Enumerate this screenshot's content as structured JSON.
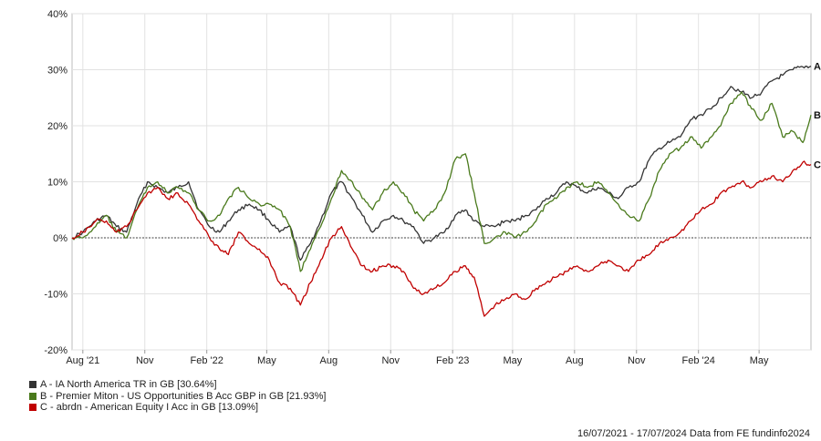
{
  "chart_data": {
    "type": "line",
    "y_axis": {
      "ticks": [
        "40%",
        "30%",
        "20%",
        "10%",
        "0%",
        "-10%",
        "-20%"
      ],
      "values": [
        40,
        30,
        20,
        10,
        0,
        -10,
        -20
      ],
      "ylim": [
        -20,
        40
      ]
    },
    "x_axis": {
      "ticks": [
        "Aug '21",
        "Nov",
        "Feb '22",
        "May",
        "Aug",
        "Nov",
        "Feb '23",
        "May",
        "Aug",
        "Nov",
        "Feb '24",
        "May"
      ],
      "tick_dates": [
        "2021-08-01",
        "2021-11-01",
        "2022-02-01",
        "2022-05-01",
        "2022-08-01",
        "2022-11-01",
        "2023-02-01",
        "2023-05-01",
        "2023-08-01",
        "2023-11-01",
        "2024-02-01",
        "2024-05-01"
      ],
      "xlim": [
        "2021-07-16",
        "2024-07-17"
      ]
    },
    "grid": true,
    "legend_position": "bottom-left",
    "series": [
      {
        "name": "A - IA North America TR in GB [30.64%]",
        "end_label": "A",
        "color": "#333333",
        "points": [
          [
            "2021-07-16",
            0
          ],
          [
            "2021-08-01",
            1
          ],
          [
            "2021-08-20",
            3
          ],
          [
            "2021-09-05",
            4
          ],
          [
            "2021-09-20",
            2
          ],
          [
            "2021-10-05",
            1
          ],
          [
            "2021-10-20",
            6
          ],
          [
            "2021-11-05",
            10
          ],
          [
            "2021-11-20",
            9
          ],
          [
            "2021-12-05",
            8
          ],
          [
            "2021-12-20",
            9
          ],
          [
            "2022-01-05",
            10
          ],
          [
            "2022-01-20",
            5
          ],
          [
            "2022-02-05",
            2
          ],
          [
            "2022-02-20",
            1
          ],
          [
            "2022-03-05",
            3
          ],
          [
            "2022-03-20",
            5
          ],
          [
            "2022-04-05",
            6
          ],
          [
            "2022-04-20",
            5
          ],
          [
            "2022-05-05",
            3
          ],
          [
            "2022-05-20",
            1
          ],
          [
            "2022-06-05",
            2
          ],
          [
            "2022-06-20",
            -4
          ],
          [
            "2022-07-05",
            -1
          ],
          [
            "2022-07-20",
            3
          ],
          [
            "2022-08-05",
            8
          ],
          [
            "2022-08-20",
            10
          ],
          [
            "2022-09-05",
            7
          ],
          [
            "2022-09-20",
            4
          ],
          [
            "2022-10-05",
            1
          ],
          [
            "2022-10-20",
            3
          ],
          [
            "2022-11-05",
            4
          ],
          [
            "2022-11-20",
            3
          ],
          [
            "2022-12-05",
            2
          ],
          [
            "2022-12-20",
            -1
          ],
          [
            "2023-01-05",
            0
          ],
          [
            "2023-01-20",
            1
          ],
          [
            "2023-02-05",
            4
          ],
          [
            "2023-02-20",
            5
          ],
          [
            "2023-03-05",
            3
          ],
          [
            "2023-03-20",
            2
          ],
          [
            "2023-04-05",
            2
          ],
          [
            "2023-04-20",
            3
          ],
          [
            "2023-05-05",
            3
          ],
          [
            "2023-05-20",
            4
          ],
          [
            "2023-06-05",
            5
          ],
          [
            "2023-06-20",
            7
          ],
          [
            "2023-07-05",
            8
          ],
          [
            "2023-07-20",
            10
          ],
          [
            "2023-08-05",
            9
          ],
          [
            "2023-08-20",
            8
          ],
          [
            "2023-09-05",
            9
          ],
          [
            "2023-09-20",
            8
          ],
          [
            "2023-10-05",
            7
          ],
          [
            "2023-10-20",
            9
          ],
          [
            "2023-11-05",
            10
          ],
          [
            "2023-11-20",
            14
          ],
          [
            "2023-12-05",
            16
          ],
          [
            "2023-12-20",
            17
          ],
          [
            "2024-01-05",
            18
          ],
          [
            "2024-01-20",
            21
          ],
          [
            "2024-02-05",
            22
          ],
          [
            "2024-02-20",
            23
          ],
          [
            "2024-03-05",
            25
          ],
          [
            "2024-03-20",
            27
          ],
          [
            "2024-04-05",
            26
          ],
          [
            "2024-04-20",
            25
          ],
          [
            "2024-05-05",
            26
          ],
          [
            "2024-05-20",
            28
          ],
          [
            "2024-06-05",
            29
          ],
          [
            "2024-06-20",
            30
          ],
          [
            "2024-07-05",
            30.5
          ],
          [
            "2024-07-17",
            30.64
          ]
        ]
      },
      {
        "name": "B - Premier Miton - US Opportunities B Acc GBP in GB [21.93%]",
        "end_label": "B",
        "color": "#4a7a1c",
        "points": [
          [
            "2021-07-16",
            0
          ],
          [
            "2021-08-01",
            0
          ],
          [
            "2021-08-20",
            2
          ],
          [
            "2021-09-05",
            4
          ],
          [
            "2021-09-20",
            1
          ],
          [
            "2021-10-05",
            0
          ],
          [
            "2021-10-20",
            5
          ],
          [
            "2021-11-05",
            9
          ],
          [
            "2021-11-20",
            10
          ],
          [
            "2021-12-05",
            8
          ],
          [
            "2021-12-20",
            9
          ],
          [
            "2022-01-05",
            8
          ],
          [
            "2022-01-20",
            5
          ],
          [
            "2022-02-05",
            3
          ],
          [
            "2022-02-20",
            4
          ],
          [
            "2022-03-05",
            7
          ],
          [
            "2022-03-20",
            9
          ],
          [
            "2022-04-05",
            7
          ],
          [
            "2022-04-20",
            6
          ],
          [
            "2022-05-05",
            6
          ],
          [
            "2022-05-20",
            5
          ],
          [
            "2022-06-05",
            2
          ],
          [
            "2022-06-20",
            -6
          ],
          [
            "2022-07-05",
            -2
          ],
          [
            "2022-07-20",
            2
          ],
          [
            "2022-08-05",
            7
          ],
          [
            "2022-08-20",
            12
          ],
          [
            "2022-09-05",
            10
          ],
          [
            "2022-09-20",
            7
          ],
          [
            "2022-10-05",
            5
          ],
          [
            "2022-10-20",
            8
          ],
          [
            "2022-11-05",
            10
          ],
          [
            "2022-11-20",
            8
          ],
          [
            "2022-12-05",
            5
          ],
          [
            "2022-12-20",
            3
          ],
          [
            "2023-01-05",
            5
          ],
          [
            "2023-01-20",
            8
          ],
          [
            "2023-02-05",
            14
          ],
          [
            "2023-02-20",
            15
          ],
          [
            "2023-03-05",
            8
          ],
          [
            "2023-03-20",
            -1
          ],
          [
            "2023-04-05",
            0
          ],
          [
            "2023-04-20",
            1
          ],
          [
            "2023-05-05",
            0
          ],
          [
            "2023-05-20",
            1
          ],
          [
            "2023-06-05",
            3
          ],
          [
            "2023-06-20",
            6
          ],
          [
            "2023-07-05",
            7
          ],
          [
            "2023-07-20",
            9
          ],
          [
            "2023-08-05",
            10
          ],
          [
            "2023-08-20",
            9
          ],
          [
            "2023-09-05",
            10
          ],
          [
            "2023-09-20",
            8
          ],
          [
            "2023-10-05",
            6
          ],
          [
            "2023-10-20",
            4
          ],
          [
            "2023-11-05",
            3
          ],
          [
            "2023-11-20",
            7
          ],
          [
            "2023-12-05",
            12
          ],
          [
            "2023-12-20",
            15
          ],
          [
            "2024-01-05",
            16
          ],
          [
            "2024-01-20",
            18
          ],
          [
            "2024-02-05",
            16
          ],
          [
            "2024-02-20",
            18
          ],
          [
            "2024-03-05",
            20
          ],
          [
            "2024-03-20",
            24
          ],
          [
            "2024-04-05",
            26
          ],
          [
            "2024-04-20",
            23
          ],
          [
            "2024-05-05",
            21
          ],
          [
            "2024-05-20",
            24
          ],
          [
            "2024-06-05",
            18
          ],
          [
            "2024-06-20",
            19
          ],
          [
            "2024-07-05",
            17
          ],
          [
            "2024-07-17",
            21.93
          ]
        ]
      },
      {
        "name": "C - abrdn - American Equity I Acc in GB [13.09%]",
        "end_label": "C",
        "color": "#c00000",
        "points": [
          [
            "2021-07-16",
            0
          ],
          [
            "2021-08-01",
            1
          ],
          [
            "2021-08-20",
            3
          ],
          [
            "2021-09-05",
            3
          ],
          [
            "2021-09-20",
            1
          ],
          [
            "2021-10-05",
            2
          ],
          [
            "2021-10-20",
            5
          ],
          [
            "2021-11-05",
            8
          ],
          [
            "2021-11-20",
            9
          ],
          [
            "2021-12-05",
            7
          ],
          [
            "2021-12-20",
            8
          ],
          [
            "2022-01-05",
            6
          ],
          [
            "2022-01-20",
            3
          ],
          [
            "2022-02-05",
            0
          ],
          [
            "2022-02-20",
            -2
          ],
          [
            "2022-03-05",
            -3
          ],
          [
            "2022-03-20",
            1
          ],
          [
            "2022-04-05",
            -1
          ],
          [
            "2022-04-20",
            -2
          ],
          [
            "2022-05-05",
            -4
          ],
          [
            "2022-05-20",
            -8
          ],
          [
            "2022-06-05",
            -9
          ],
          [
            "2022-06-20",
            -12
          ],
          [
            "2022-07-05",
            -8
          ],
          [
            "2022-07-20",
            -4
          ],
          [
            "2022-08-05",
            0
          ],
          [
            "2022-08-20",
            2
          ],
          [
            "2022-09-05",
            -2
          ],
          [
            "2022-09-20",
            -5
          ],
          [
            "2022-10-05",
            -6
          ],
          [
            "2022-10-20",
            -5
          ],
          [
            "2022-11-05",
            -5
          ],
          [
            "2022-11-20",
            -6
          ],
          [
            "2022-12-05",
            -9
          ],
          [
            "2022-12-20",
            -10
          ],
          [
            "2023-01-05",
            -9
          ],
          [
            "2023-01-20",
            -8
          ],
          [
            "2023-02-05",
            -6
          ],
          [
            "2023-02-20",
            -5
          ],
          [
            "2023-03-05",
            -7
          ],
          [
            "2023-03-20",
            -14
          ],
          [
            "2023-04-05",
            -12
          ],
          [
            "2023-04-20",
            -11
          ],
          [
            "2023-05-05",
            -10
          ],
          [
            "2023-05-20",
            -11
          ],
          [
            "2023-06-05",
            -9
          ],
          [
            "2023-06-20",
            -8
          ],
          [
            "2023-07-05",
            -7
          ],
          [
            "2023-07-20",
            -6
          ],
          [
            "2023-08-05",
            -5
          ],
          [
            "2023-08-20",
            -6
          ],
          [
            "2023-09-05",
            -5
          ],
          [
            "2023-09-20",
            -4
          ],
          [
            "2023-10-05",
            -5
          ],
          [
            "2023-10-20",
            -6
          ],
          [
            "2023-11-05",
            -4
          ],
          [
            "2023-11-20",
            -3
          ],
          [
            "2023-12-05",
            -1
          ],
          [
            "2023-12-20",
            0
          ],
          [
            "2024-01-05",
            1
          ],
          [
            "2024-01-20",
            3
          ],
          [
            "2024-02-05",
            5
          ],
          [
            "2024-02-20",
            6
          ],
          [
            "2024-03-05",
            8
          ],
          [
            "2024-03-20",
            9
          ],
          [
            "2024-04-05",
            10
          ],
          [
            "2024-04-20",
            9
          ],
          [
            "2024-05-05",
            10
          ],
          [
            "2024-05-20",
            11
          ],
          [
            "2024-06-05",
            10
          ],
          [
            "2024-06-20",
            12
          ],
          [
            "2024-07-05",
            13.5
          ],
          [
            "2024-07-17",
            13.09
          ]
        ]
      }
    ]
  },
  "footer_text": "16/07/2021 - 17/07/2024 Data from FE fundinfo2024"
}
